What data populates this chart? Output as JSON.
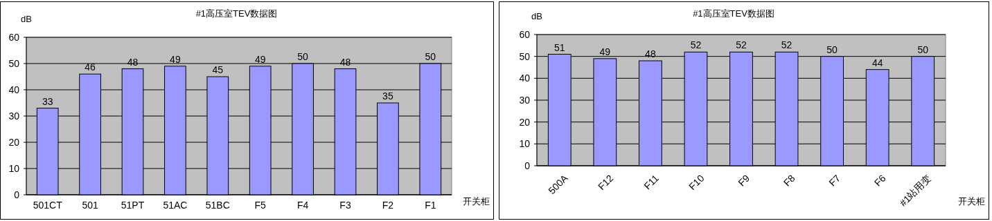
{
  "chart_data": [
    {
      "type": "bar",
      "title": "#1高压室TEV数据图",
      "ylabel": "dB",
      "xlabel": "开关柜",
      "categories": [
        "501CT",
        "501",
        "51PT",
        "51AC",
        "51BC",
        "F5",
        "F4",
        "F3",
        "F2",
        "F1"
      ],
      "values": [
        33,
        46,
        48,
        49,
        45,
        49,
        50,
        48,
        35,
        50
      ],
      "color": "#9999ff",
      "ylim": [
        0,
        60
      ],
      "yticks": [
        0,
        10,
        20,
        30,
        40,
        50,
        60
      ],
      "grid": "y",
      "data_labels": true
    },
    {
      "type": "bar",
      "title": "#1高压室TEV数据图",
      "ylabel": "dB",
      "xlabel": "开关柜",
      "categories": [
        "500A",
        "F12",
        "F11",
        "F10",
        "F9",
        "F8",
        "F7",
        "F6",
        "#1站用变"
      ],
      "values": [
        51,
        49,
        48,
        52,
        52,
        52,
        50,
        44,
        50
      ],
      "color": "#9999ff",
      "ylim": [
        0,
        60
      ],
      "yticks": [
        0,
        10,
        20,
        30,
        40,
        50,
        60
      ],
      "grid": "y",
      "data_labels": true
    }
  ]
}
